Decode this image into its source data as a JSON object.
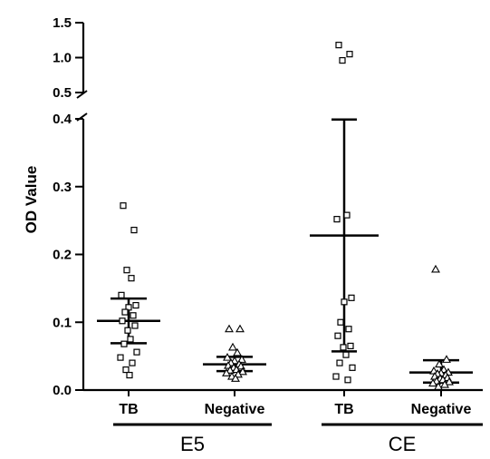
{
  "chart_data": {
    "type": "scatter",
    "ylabel": "OD Value",
    "xlabel": "",
    "title": "",
    "y_axis": {
      "broken": true,
      "lower_range": [
        0,
        0.4
      ],
      "upper_range": [
        0.5,
        1.5
      ],
      "lower_ticks": [
        "0.0",
        "0.1",
        "0.2",
        "0.3",
        "0.4"
      ],
      "upper_ticks": [
        "0.5",
        "1.0",
        "1.5"
      ]
    },
    "grid": false,
    "legend": "none",
    "groups": [
      {
        "label": "E5",
        "categories": [
          "TB",
          "Negative"
        ]
      },
      {
        "label": "CE",
        "categories": [
          "TB",
          "Negative"
        ]
      }
    ],
    "series": [
      {
        "group": "E5",
        "category": "TB",
        "marker": "square",
        "mean": 0.102,
        "error_low": 0.069,
        "error_high": 0.135,
        "values": [
          0.272,
          0.236,
          0.177,
          0.165,
          0.14,
          0.125,
          0.122,
          0.115,
          0.11,
          0.102,
          0.095,
          0.088,
          0.075,
          0.068,
          0.056,
          0.048,
          0.04,
          0.03,
          0.022
        ]
      },
      {
        "group": "E5",
        "category": "Negative",
        "marker": "triangle",
        "mean": 0.038,
        "error_low": 0.028,
        "error_high": 0.049,
        "values": [
          0.09,
          0.09,
          0.063,
          0.055,
          0.048,
          0.045,
          0.043,
          0.04,
          0.038,
          0.036,
          0.035,
          0.033,
          0.03,
          0.029,
          0.027,
          0.025,
          0.023,
          0.02,
          0.017
        ]
      },
      {
        "group": "CE",
        "category": "TB",
        "marker": "square",
        "mean": 0.228,
        "error_low": 0.057,
        "error_high": 0.399,
        "values": [
          1.18,
          1.05,
          0.96,
          0.258,
          0.252,
          0.136,
          0.13,
          0.1,
          0.09,
          0.08,
          0.065,
          0.063,
          0.052,
          0.04,
          0.033,
          0.02,
          0.015
        ]
      },
      {
        "group": "CE",
        "category": "Negative",
        "marker": "triangle",
        "mean": 0.026,
        "error_low": 0.011,
        "error_high": 0.044,
        "values": [
          0.178,
          0.045,
          0.038,
          0.03,
          0.028,
          0.026,
          0.025,
          0.024,
          0.022,
          0.02,
          0.018,
          0.017,
          0.015,
          0.013,
          0.012,
          0.01,
          0.008,
          0.005
        ]
      }
    ]
  }
}
